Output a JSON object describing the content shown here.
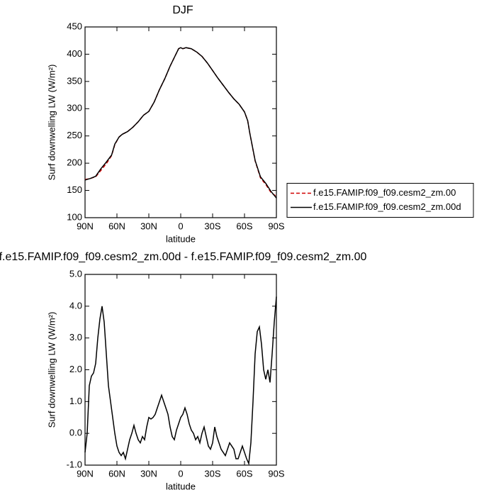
{
  "chart_data": [
    {
      "type": "line",
      "title": "DJF",
      "xlabel": "latitude",
      "ylabel": "Surf downwelling LW (W/m²)",
      "x": [
        90,
        85,
        80,
        75,
        70,
        65,
        62,
        58,
        55,
        50,
        45,
        40,
        35,
        30,
        25,
        20,
        15,
        10,
        5,
        2,
        0,
        -2,
        -5,
        -10,
        -15,
        -20,
        -25,
        -30,
        -35,
        -40,
        -45,
        -50,
        -55,
        -60,
        -63,
        -65,
        -70,
        -75,
        -80,
        -85,
        -90
      ],
      "series": [
        {
          "name": "f.e15.FAMIP.f09_f09.cesm2_zm.00",
          "color": "#d00000",
          "dashed": true,
          "values": [
            170,
            172,
            175,
            187,
            199,
            214,
            234,
            248,
            253,
            258,
            266,
            276,
            288,
            295,
            312,
            335,
            355,
            378,
            398,
            410,
            412,
            410,
            412,
            410,
            404,
            396,
            384,
            370,
            356,
            343,
            330,
            318,
            308,
            294,
            278,
            255,
            204,
            173,
            161,
            146,
            139
          ]
        },
        {
          "name": "f.e15.FAMIP.f09_f09.cesm2_zm.00d",
          "color": "#000000",
          "dashed": false,
          "values": [
            169,
            172,
            176,
            190,
            202,
            215,
            235,
            248,
            253,
            258,
            266,
            276,
            288,
            295,
            312,
            335,
            355,
            378,
            398,
            410,
            412,
            410,
            412,
            410,
            404,
            396,
            384,
            370,
            356,
            343,
            330,
            318,
            308,
            294,
            278,
            255,
            205,
            175,
            163,
            148,
            136
          ]
        }
      ],
      "xlim": [
        90,
        -90
      ],
      "xticks": [
        {
          "value": 90,
          "label": "90N"
        },
        {
          "value": 60,
          "label": "60N"
        },
        {
          "value": 30,
          "label": "30N"
        },
        0,
        {
          "value": -30,
          "label": "30S"
        },
        {
          "value": -60,
          "label": "60S"
        },
        {
          "value": -90,
          "label": "90S"
        }
      ],
      "ylim": [
        100,
        450
      ],
      "yticks": [
        100,
        150,
        200,
        250,
        300,
        350,
        400,
        450
      ],
      "legend": "right"
    },
    {
      "type": "line",
      "title": "f.e15.FAMIP.f09_f09.cesm2_zm.00d - f.e15.FAMIP.f09_f09.cesm2_zm.00",
      "xlabel": "latitude",
      "ylabel": "Surf downwelling LW (W/m²)",
      "x": [
        90,
        88,
        86,
        84,
        82,
        80,
        78,
        76,
        74,
        72,
        70,
        68,
        66,
        64,
        62,
        60,
        58,
        56,
        54,
        52,
        50,
        48,
        46,
        44,
        42,
        40,
        38,
        36,
        34,
        32,
        30,
        28,
        26,
        24,
        22,
        20,
        18,
        16,
        14,
        12,
        10,
        8,
        6,
        4,
        2,
        0,
        -2,
        -4,
        -6,
        -8,
        -10,
        -12,
        -14,
        -16,
        -18,
        -20,
        -22,
        -24,
        -26,
        -28,
        -30,
        -32,
        -34,
        -36,
        -38,
        -40,
        -42,
        -44,
        -46,
        -48,
        -50,
        -52,
        -54,
        -56,
        -58,
        -60,
        -62,
        -64,
        -66,
        -68,
        -70,
        -72,
        -74,
        -76,
        -78,
        -80,
        -82,
        -84,
        -86,
        -88,
        -90
      ],
      "values": [
        -0.6,
        0.0,
        1.5,
        1.8,
        1.9,
        2.2,
        3.0,
        3.6,
        4.0,
        3.5,
        2.5,
        1.5,
        1.0,
        0.5,
        0.0,
        -0.4,
        -0.6,
        -0.7,
        -0.6,
        -0.8,
        -0.5,
        -0.2,
        0.0,
        0.25,
        0.0,
        -0.2,
        -0.3,
        -0.1,
        -0.2,
        0.2,
        0.5,
        0.45,
        0.5,
        0.6,
        0.8,
        1.0,
        1.2,
        1.0,
        0.8,
        0.6,
        0.2,
        -0.1,
        -0.2,
        0.1,
        0.3,
        0.5,
        0.6,
        0.8,
        0.6,
        0.3,
        0.1,
        0.0,
        -0.2,
        -0.1,
        -0.3,
        0.0,
        0.2,
        -0.1,
        -0.4,
        -0.5,
        -0.3,
        0.2,
        -0.1,
        -0.3,
        -0.5,
        -0.6,
        -0.7,
        -0.5,
        -0.3,
        -0.4,
        -0.5,
        -0.8,
        -0.8,
        -0.6,
        -0.4,
        -0.6,
        -0.8,
        -0.95,
        -0.3,
        1.0,
        2.5,
        3.2,
        3.35,
        2.8,
        2.0,
        1.7,
        2.0,
        1.6,
        2.5,
        3.5,
        4.3
      ],
      "color": "#000000",
      "xlim": [
        90,
        -90
      ],
      "xticks": [
        {
          "value": 90,
          "label": "90N"
        },
        {
          "value": 60,
          "label": "60N"
        },
        {
          "value": 30,
          "label": "30N"
        },
        0,
        {
          "value": -30,
          "label": "30S"
        },
        {
          "value": -60,
          "label": "60S"
        },
        {
          "value": -90,
          "label": "90S"
        }
      ],
      "ylim": [
        -1,
        5
      ],
      "yticks": [
        {
          "value": -1,
          "label": "-1.0"
        },
        {
          "value": 0,
          "label": "0.0"
        },
        {
          "value": 1,
          "label": "1.0"
        },
        {
          "value": 2,
          "label": "2.0"
        },
        {
          "value": 3,
          "label": "3.0"
        },
        {
          "value": 4,
          "label": "4.0"
        },
        {
          "value": 5,
          "label": "5.0"
        }
      ]
    }
  ]
}
